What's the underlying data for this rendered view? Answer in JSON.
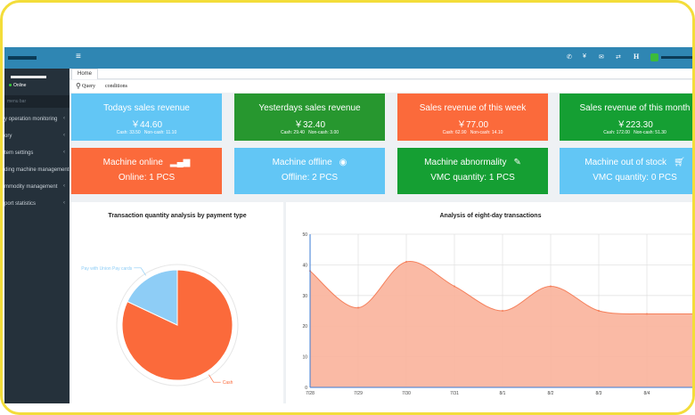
{
  "sidebar": {
    "status": "Online",
    "search_placeholder": "menu bar",
    "items": [
      {
        "label": "y operation monitoring"
      },
      {
        "label": "ory"
      },
      {
        "label": "tem settings"
      },
      {
        "label": "ding machine management"
      },
      {
        "label": "mmodity management"
      },
      {
        "label": "port statistics"
      }
    ]
  },
  "topbar": {
    "menu_icon": "hamburger-icon",
    "icons": [
      "phone-icon",
      "yen-icon",
      "mail-icon",
      "h-icon"
    ],
    "h_label": "H",
    "yen_label": "¥"
  },
  "tabs": [
    {
      "label": "Home"
    }
  ],
  "query": {
    "label": "Query",
    "conditions": "conditions"
  },
  "revenue_cards": [
    {
      "title": "Todays sales revenue",
      "amount": "￥44.60",
      "cash_label": "Cash:",
      "cash": "33.50",
      "noncash_label": "Non-cash:",
      "noncash": "11.10",
      "color": "#62c6f5"
    },
    {
      "title": "Yesterdays sales revenue",
      "amount": "￥32.40",
      "cash_label": "Cash:",
      "cash": "29.40",
      "noncash_label": "Non-cash:",
      "noncash": "3.00",
      "color": "#27972f"
    },
    {
      "title": "Sales revenue of this week",
      "amount": "￥77.00",
      "cash_label": "Cash:",
      "cash": "62.90",
      "noncash_label": "Non-cash:",
      "noncash": "14.10",
      "color": "#fb6a3b"
    },
    {
      "title": "Sales revenue of this month",
      "amount": "￥223.30",
      "cash_label": "Cash:",
      "cash": "172.00",
      "noncash_label": "Non-cash:",
      "noncash": "51.30",
      "color": "#159f33"
    }
  ],
  "machine_cards": [
    {
      "title": "Machine online",
      "icon": "signal-bars-icon",
      "text": "Online:  1  PCS",
      "color": "#fb6a3b"
    },
    {
      "title": "Machine offline",
      "icon": "globe-icon",
      "text": "Offline:  2  PCS",
      "color": "#62c6f5"
    },
    {
      "title": "Machine abnormality",
      "icon": "wrench-icon",
      "text": "VMC quantity:  1  PCS",
      "color": "#159f33"
    },
    {
      "title": "Machine out of stock",
      "icon": "cart-icon",
      "text": "VMC quantity:  0  PCS",
      "color": "#62c6f5"
    }
  ],
  "chart_data": [
    {
      "type": "pie",
      "title": "Transaction quantity analysis by payment type",
      "slices": [
        {
          "label": "Cash",
          "value": 82,
          "color": "#fb6a3b"
        },
        {
          "label": "Pay with Union Pay cards",
          "value": 18,
          "color": "#8ecdf6"
        }
      ]
    },
    {
      "type": "area",
      "title": "Analysis of eight-day transactions",
      "categories": [
        "7/28",
        "7/29",
        "7/30",
        "7/31",
        "8/1",
        "8/2",
        "8/3",
        "8/4"
      ],
      "values": [
        38,
        26,
        41,
        33,
        25,
        33,
        25,
        24
      ],
      "ylim": [
        0,
        50
      ],
      "yticks": [
        0,
        10,
        20,
        30,
        40,
        50
      ],
      "grid": true,
      "fill_color": "#f9b39b",
      "line_color": "#f57f5a"
    }
  ]
}
